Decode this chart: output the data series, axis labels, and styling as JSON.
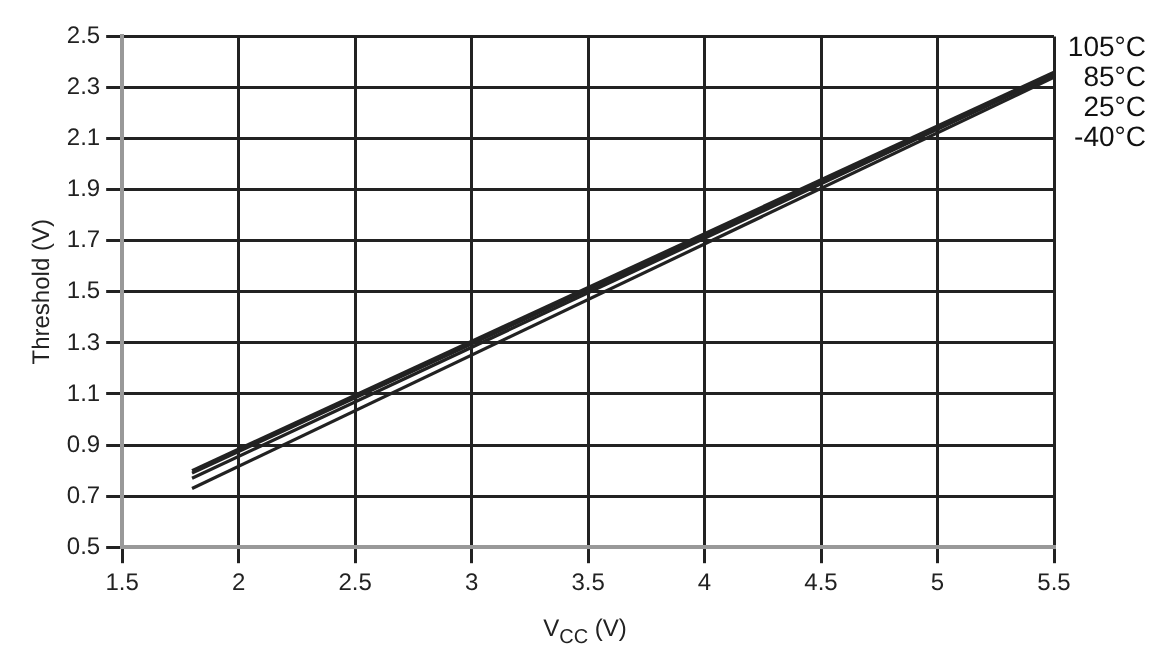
{
  "chart_data": {
    "type": "line",
    "xlabel": "V$_{CC}$ (V)",
    "ylabel": "Threshold (V)",
    "x": [
      1.8,
      5.5
    ],
    "series": [
      {
        "name": "105°C",
        "color": "#222222",
        "values": [
          0.8,
          2.36
        ]
      },
      {
        "name": "85°C",
        "color": "#222222",
        "values": [
          0.79,
          2.35
        ]
      },
      {
        "name": "25°C",
        "color": "#222222",
        "values": [
          0.77,
          2.35
        ]
      },
      {
        "name": "-40°C",
        "color": "#222222",
        "values": [
          0.73,
          2.34
        ]
      }
    ],
    "xlim": [
      1.5,
      5.5
    ],
    "xticks": [
      1.5,
      2,
      2.5,
      3,
      3.5,
      4,
      4.5,
      5,
      5.5
    ],
    "ylim": [
      0.5,
      2.5
    ],
    "yticks": [
      0.5,
      0.7,
      0.9,
      1.1,
      1.3,
      1.5,
      1.7,
      1.9,
      2.1,
      2.3,
      2.5
    ],
    "grid": true,
    "legend": false,
    "marker": "none",
    "line_style": "solid"
  }
}
